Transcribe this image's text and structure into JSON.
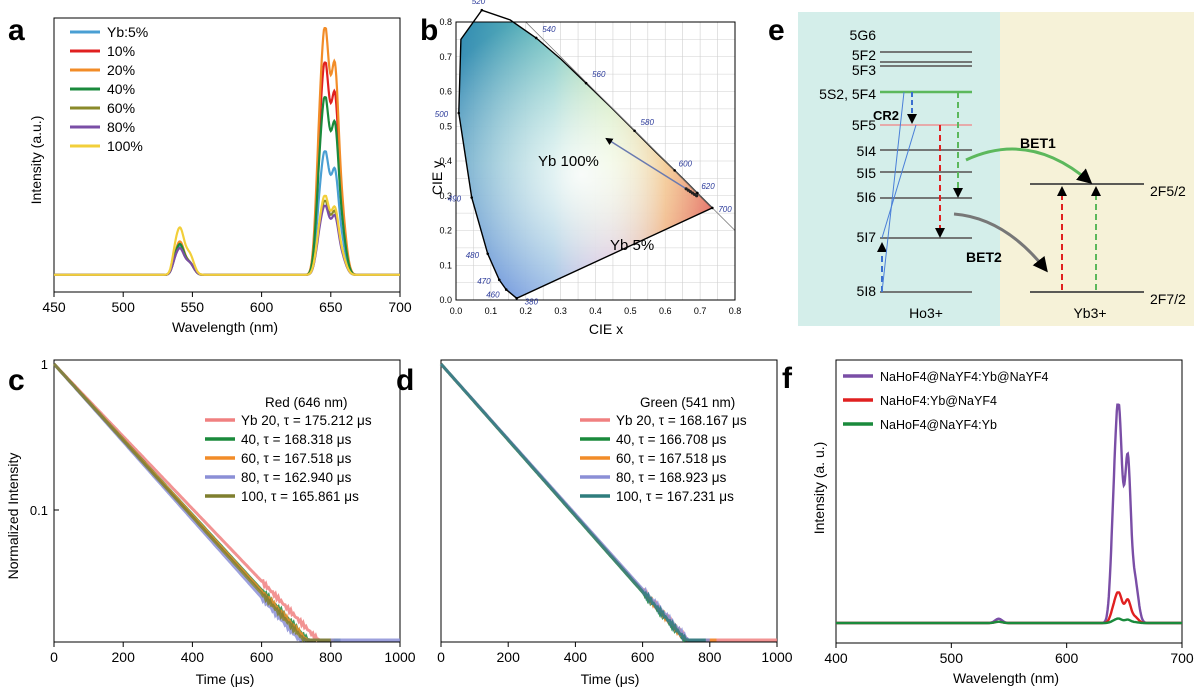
{
  "figure": {
    "panels": {
      "a": {
        "letter": "a",
        "ylabel": "Intensity (a.u.)",
        "xlabel": "Wavelength (nm)",
        "xlim": [
          450,
          700
        ],
        "ticks": [
          "450",
          "500",
          "550",
          "600",
          "650",
          "700"
        ],
        "series": [
          {
            "name": "Yb:5%",
            "color": "#4a9fd3",
            "peak": 0.5
          },
          {
            "name": "10%",
            "color": "#e02020",
            "peak": 0.86
          },
          {
            "name": "20%",
            "color": "#f28c28",
            "peak": 1.0
          },
          {
            "name": "40%",
            "color": "#1a8a3c",
            "peak": 0.72
          },
          {
            "name": "60%",
            "color": "#8a8a2a",
            "peak": 0.3
          },
          {
            "name": "80%",
            "color": "#7a4ea6",
            "peak": 0.28
          },
          {
            "name": "100%",
            "color": "#f2cf3a",
            "peak": 0.32
          }
        ]
      },
      "b": {
        "letter": "b",
        "xlabel": "CIE x",
        "ylabel": "CIE y",
        "xticks": [
          "0.0",
          "0.1",
          "0.2",
          "0.3",
          "0.4",
          "0.5",
          "0.6",
          "0.7",
          "0.8"
        ],
        "yticks": [
          "0.0",
          "0.1",
          "0.2",
          "0.3",
          "0.4",
          "0.5",
          "0.6",
          "0.7",
          "0.8"
        ],
        "wavelength_labels": [
          "380",
          "460",
          "470",
          "480",
          "490",
          "500",
          "520",
          "540",
          "560",
          "580",
          "600",
          "620",
          "700"
        ],
        "annotation_high": "Yb 100%",
        "annotation_low": "Yb 5%",
        "points": [
          {
            "label": "Yb 5%",
            "x": 0.66,
            "y": 0.32
          },
          {
            "label": "Yb 100%",
            "x": 0.42,
            "y": 0.47
          }
        ]
      },
      "c": {
        "letter": "c",
        "ylabel": "Normalized Intensity",
        "xlabel": "Time (μs)",
        "xticks": [
          "0",
          "200",
          "400",
          "600",
          "800",
          "1000"
        ],
        "yticks": [
          "1",
          "0.1"
        ],
        "legend_title": "Red (646 nm)",
        "series": [
          {
            "name": "Yb 20, τ = 175.212 μs",
            "color": "#f08080",
            "tau": 175.212,
            "end": 820
          },
          {
            "name": "40, τ = 168.318 μs",
            "color": "#1a8a3c",
            "tau": 168.318,
            "end": 830
          },
          {
            "name": "60, τ = 167.518 μs",
            "color": "#f28c28",
            "tau": 167.518,
            "end": 810
          },
          {
            "name": "80, τ = 162.940 μs",
            "color": "#8b8fd6",
            "tau": 162.94,
            "end": 1000
          },
          {
            "name": "100, τ = 165.861 μs",
            "color": "#7f7f2e",
            "tau": 165.861,
            "end": 800
          }
        ]
      },
      "d": {
        "letter": "d",
        "xlabel": "Time (μs)",
        "xticks": [
          "0",
          "200",
          "400",
          "600",
          "800",
          "1000"
        ],
        "legend_title": "Green (541 nm)",
        "series": [
          {
            "name": "Yb 20, τ = 168.167 μs",
            "color": "#f08080",
            "tau": 168.167,
            "end": 1000
          },
          {
            "name": "40, τ = 166.708 μs",
            "color": "#1a8a3c",
            "tau": 166.708,
            "end": 780
          },
          {
            "name": "60, τ = 167.518 μs",
            "color": "#f28c28",
            "tau": 167.518,
            "end": 820
          },
          {
            "name": "80, τ = 168.923 μs",
            "color": "#8b8fd6",
            "tau": 168.923,
            "end": 800
          },
          {
            "name": "100, τ = 167.231 μs",
            "color": "#2e7d7d",
            "tau": 167.231,
            "end": 790
          }
        ]
      },
      "e": {
        "letter": "e",
        "ho_levels": [
          "5G6",
          "5F2",
          "5F3",
          "5S2, 5F4",
          "5F5",
          "5I4",
          "5I5",
          "5I6",
          "5I7",
          "5I8"
        ],
        "ion_ho": "Ho3+",
        "ion_yb": "Yb3+",
        "yb_upper": "2F5/2",
        "yb_lower": "2F7/2",
        "cr_label": "CR2",
        "bet1": "BET1",
        "bet2": "BET2"
      },
      "f": {
        "letter": "f",
        "ylabel": "Intensity (a. u.)",
        "xlabel": "Wavelength (nm)",
        "xticks": [
          "400",
          "500",
          "600",
          "700"
        ],
        "series": [
          {
            "name": "NaHoF4@NaYF4:Yb@NaYF4",
            "color": "#7a4ea6",
            "peak": 1.0
          },
          {
            "name": "NaHoF4:Yb@NaYF4",
            "color": "#e02020",
            "peak": 0.14
          },
          {
            "name": "NaHoF4@NaYF4:Yb",
            "color": "#1a8a3c",
            "peak": 0.02
          }
        ]
      }
    }
  },
  "chart_data": [
    {
      "type": "line",
      "panel": "a",
      "xlabel": "Wavelength (nm)",
      "ylabel": "Intensity (a.u.)",
      "xlim": [
        450,
        700
      ],
      "series": [
        {
          "name": "Yb:5%",
          "peak_646": 0.5
        },
        {
          "name": "10%",
          "peak_646": 0.86
        },
        {
          "name": "20%",
          "peak_646": 1.0
        },
        {
          "name": "40%",
          "peak_646": 0.72
        },
        {
          "name": "60%",
          "peak_646": 0.3
        },
        {
          "name": "80%",
          "peak_646": 0.28
        },
        {
          "name": "100%",
          "peak_646": 0.32
        }
      ]
    },
    {
      "type": "scatter",
      "panel": "b",
      "xlabel": "CIE x",
      "ylabel": "CIE y",
      "xlim": [
        0,
        0.8
      ],
      "ylim": [
        0,
        0.8
      ],
      "points": [
        {
          "label": "Yb 5%",
          "x": 0.66,
          "y": 0.32
        },
        {
          "label": "Yb 100%",
          "x": 0.42,
          "y": 0.47
        }
      ]
    },
    {
      "type": "line",
      "panel": "c",
      "title": "Red (646 nm)",
      "xlabel": "Time (μs)",
      "ylabel": "Normalized Intensity",
      "xlim": [
        0,
        1000
      ],
      "yscale": "log",
      "series": [
        {
          "name": "Yb 20",
          "tau_us": 175.212
        },
        {
          "name": "40",
          "tau_us": 168.318
        },
        {
          "name": "60",
          "tau_us": 167.518
        },
        {
          "name": "80",
          "tau_us": 162.94
        },
        {
          "name": "100",
          "tau_us": 165.861
        }
      ]
    },
    {
      "type": "line",
      "panel": "d",
      "title": "Green (541 nm)",
      "xlabel": "Time (μs)",
      "xlim": [
        0,
        1000
      ],
      "yscale": "log",
      "series": [
        {
          "name": "Yb 20",
          "tau_us": 168.167
        },
        {
          "name": "40",
          "tau_us": 166.708
        },
        {
          "name": "60",
          "tau_us": 167.518
        },
        {
          "name": "80",
          "tau_us": 168.923
        },
        {
          "name": "100",
          "tau_us": 167.231
        }
      ]
    },
    {
      "type": "line",
      "panel": "f",
      "xlabel": "Wavelength (nm)",
      "ylabel": "Intensity (a. u.)",
      "xlim": [
        400,
        700
      ],
      "series": [
        {
          "name": "NaHoF4@NaYF4:Yb@NaYF4",
          "peak_646": 1.0
        },
        {
          "name": "NaHoF4:Yb@NaYF4",
          "peak_646": 0.14
        },
        {
          "name": "NaHoF4@NaYF4:Yb",
          "peak_646": 0.02
        }
      ]
    }
  ]
}
